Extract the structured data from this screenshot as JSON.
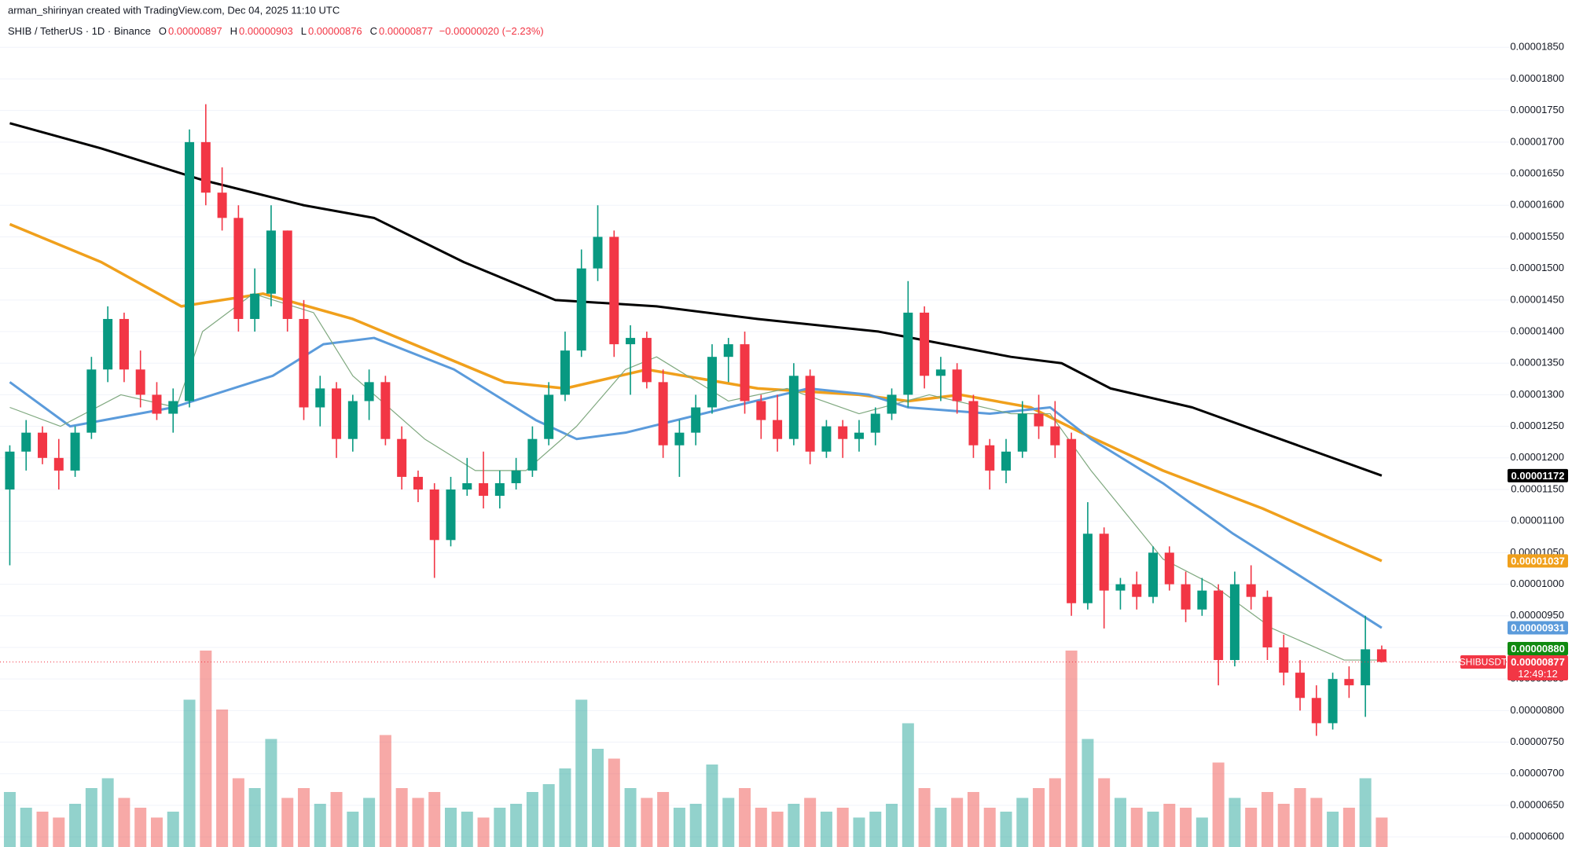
{
  "header": {
    "byline": "arman_shirinyan created with TradingView.com, Dec 04, 2025 11:10 UTC",
    "symbol": "SHIB / TetherUS · 1D · Binance",
    "ohlc": [
      {
        "key": "O",
        "value": "0.00000897"
      },
      {
        "key": "H",
        "value": "0.00000903"
      },
      {
        "key": "L",
        "value": "0.00000876"
      },
      {
        "key": "C",
        "value": "0.00000877"
      }
    ],
    "change": "−0.00000020 (−2.23%)"
  },
  "chart_data": {
    "type": "candlestick",
    "up_color": "#089981",
    "down_color": "#f23645",
    "volume_up_color": "rgba(38,166,154,0.5)",
    "volume_down_color": "rgba(239,83,80,0.5)",
    "xlim": [
      -0.6,
      91.8
    ],
    "ylim": [
      5.84e-06,
      1.925e-05
    ],
    "volume_lim": [
      0,
      100
    ],
    "grid": true,
    "yticks": [
      {
        "value": 6e-06,
        "label": "0.00000600"
      },
      {
        "value": 6.5e-06,
        "label": "0.00000650"
      },
      {
        "value": 7e-06,
        "label": "0.00000700"
      },
      {
        "value": 7.5e-06,
        "label": "0.00000750"
      },
      {
        "value": 8e-06,
        "label": "0.00000800"
      },
      {
        "value": 8.5e-06,
        "label": "0.00000850"
      },
      {
        "value": 9e-06,
        "label": "0.00000900"
      },
      {
        "value": 9.5e-06,
        "label": "0.00000950"
      },
      {
        "value": 1e-05,
        "label": "0.00001000"
      },
      {
        "value": 1.05e-05,
        "label": "0.00001050"
      },
      {
        "value": 1.1e-05,
        "label": "0.00001100"
      },
      {
        "value": 1.15e-05,
        "label": "0.00001150"
      },
      {
        "value": 1.2e-05,
        "label": "0.00001200"
      },
      {
        "value": 1.25e-05,
        "label": "0.00001250"
      },
      {
        "value": 1.3e-05,
        "label": "0.00001300"
      },
      {
        "value": 1.35e-05,
        "label": "0.00001350"
      },
      {
        "value": 1.4e-05,
        "label": "0.00001400"
      },
      {
        "value": 1.45e-05,
        "label": "0.00001450"
      },
      {
        "value": 1.5e-05,
        "label": "0.00001500"
      },
      {
        "value": 1.55e-05,
        "label": "0.00001550"
      },
      {
        "value": 1.6e-05,
        "label": "0.00001600"
      },
      {
        "value": 1.65e-05,
        "label": "0.00001650"
      },
      {
        "value": 1.7e-05,
        "label": "0.00001700"
      },
      {
        "value": 1.75e-05,
        "label": "0.00001750"
      },
      {
        "value": 1.8e-05,
        "label": "0.00001800"
      },
      {
        "value": 1.85e-05,
        "label": "0.00001850"
      }
    ],
    "open": [
      1.15e-05,
      1.21e-05,
      1.24e-05,
      1.2e-05,
      1.18e-05,
      1.24e-05,
      1.34e-05,
      1.42e-05,
      1.34e-05,
      1.3e-05,
      1.27e-05,
      1.29e-05,
      1.7e-05,
      1.62e-05,
      1.58e-05,
      1.42e-05,
      1.46e-05,
      1.56e-05,
      1.42e-05,
      1.28e-05,
      1.31e-05,
      1.23e-05,
      1.29e-05,
      1.32e-05,
      1.23e-05,
      1.17e-05,
      1.15e-05,
      1.07e-05,
      1.15e-05,
      1.16e-05,
      1.14e-05,
      1.16e-05,
      1.18e-05,
      1.23e-05,
      1.3e-05,
      1.37e-05,
      1.5e-05,
      1.55e-05,
      1.38e-05,
      1.39e-05,
      1.32e-05,
      1.22e-05,
      1.24e-05,
      1.28e-05,
      1.36e-05,
      1.38e-05,
      1.29e-05,
      1.26e-05,
      1.23e-05,
      1.33e-05,
      1.21e-05,
      1.25e-05,
      1.23e-05,
      1.24e-05,
      1.27e-05,
      1.3e-05,
      1.43e-05,
      1.33e-05,
      1.34e-05,
      1.29e-05,
      1.22e-05,
      1.18e-05,
      1.21e-05,
      1.27e-05,
      1.25e-05,
      1.23e-05,
      9.7e-06,
      1.08e-05,
      9.9e-06,
      1e-05,
      9.8e-06,
      1.05e-05,
      1e-05,
      9.6e-06,
      9.9e-06,
      8.8e-06,
      1e-05,
      9.8e-06,
      9e-06,
      8.6e-06,
      8.2e-06,
      7.8e-06,
      8.5e-06,
      8.4e-06,
      8.97e-06
    ],
    "high": [
      1.22e-05,
      1.26e-05,
      1.25e-05,
      1.23e-05,
      1.25e-05,
      1.36e-05,
      1.44e-05,
      1.43e-05,
      1.37e-05,
      1.32e-05,
      1.31e-05,
      1.72e-05,
      1.76e-05,
      1.66e-05,
      1.6e-05,
      1.5e-05,
      1.6e-05,
      1.56e-05,
      1.45e-05,
      1.33e-05,
      1.32e-05,
      1.3e-05,
      1.34e-05,
      1.33e-05,
      1.25e-05,
      1.18e-05,
      1.16e-05,
      1.17e-05,
      1.2e-05,
      1.21e-05,
      1.18e-05,
      1.2e-05,
      1.25e-05,
      1.32e-05,
      1.4e-05,
      1.53e-05,
      1.6e-05,
      1.56e-05,
      1.41e-05,
      1.4e-05,
      1.34e-05,
      1.26e-05,
      1.3e-05,
      1.38e-05,
      1.39e-05,
      1.4e-05,
      1.3e-05,
      1.3e-05,
      1.35e-05,
      1.34e-05,
      1.26e-05,
      1.26e-05,
      1.26e-05,
      1.28e-05,
      1.31e-05,
      1.48e-05,
      1.44e-05,
      1.36e-05,
      1.35e-05,
      1.3e-05,
      1.23e-05,
      1.23e-05,
      1.29e-05,
      1.3e-05,
      1.29e-05,
      1.24e-05,
      1.13e-05,
      1.09e-05,
      1.01e-05,
      1.02e-05,
      1.06e-05,
      1.06e-05,
      1.02e-05,
      1.01e-05,
      1e-05,
      1.02e-05,
      1.03e-05,
      9.9e-06,
      9.2e-06,
      8.8e-06,
      8.4e-06,
      8.6e-06,
      8.7e-06,
      9.5e-06,
      9.03e-06
    ],
    "low": [
      1.03e-05,
      1.18e-05,
      1.19e-05,
      1.15e-05,
      1.17e-05,
      1.23e-05,
      1.32e-05,
      1.32e-05,
      1.28e-05,
      1.26e-05,
      1.24e-05,
      1.28e-05,
      1.6e-05,
      1.56e-05,
      1.4e-05,
      1.4e-05,
      1.44e-05,
      1.4e-05,
      1.26e-05,
      1.25e-05,
      1.2e-05,
      1.21e-05,
      1.26e-05,
      1.22e-05,
      1.15e-05,
      1.13e-05,
      1.01e-05,
      1.06e-05,
      1.14e-05,
      1.12e-05,
      1.12e-05,
      1.15e-05,
      1.17e-05,
      1.22e-05,
      1.29e-05,
      1.36e-05,
      1.48e-05,
      1.36e-05,
      1.3e-05,
      1.31e-05,
      1.2e-05,
      1.17e-05,
      1.22e-05,
      1.27e-05,
      1.32e-05,
      1.27e-05,
      1.23e-05,
      1.21e-05,
      1.22e-05,
      1.19e-05,
      1.2e-05,
      1.2e-05,
      1.21e-05,
      1.22e-05,
      1.26e-05,
      1.28e-05,
      1.31e-05,
      1.29e-05,
      1.27e-05,
      1.2e-05,
      1.15e-05,
      1.16e-05,
      1.2e-05,
      1.23e-05,
      1.2e-05,
      9.5e-06,
      9.6e-06,
      9.3e-06,
      9.6e-06,
      9.6e-06,
      9.7e-06,
      9.9e-06,
      9.4e-06,
      9.5e-06,
      8.4e-06,
      8.7e-06,
      9.6e-06,
      8.8e-06,
      8.4e-06,
      8e-06,
      7.6e-06,
      7.7e-06,
      8.2e-06,
      7.9e-06,
      8.76e-06
    ],
    "close": [
      1.21e-05,
      1.24e-05,
      1.2e-05,
      1.18e-05,
      1.24e-05,
      1.34e-05,
      1.42e-05,
      1.34e-05,
      1.3e-05,
      1.27e-05,
      1.29e-05,
      1.7e-05,
      1.62e-05,
      1.58e-05,
      1.42e-05,
      1.46e-05,
      1.56e-05,
      1.42e-05,
      1.28e-05,
      1.31e-05,
      1.23e-05,
      1.29e-05,
      1.32e-05,
      1.23e-05,
      1.17e-05,
      1.15e-05,
      1.07e-05,
      1.15e-05,
      1.16e-05,
      1.14e-05,
      1.16e-05,
      1.18e-05,
      1.23e-05,
      1.3e-05,
      1.37e-05,
      1.5e-05,
      1.55e-05,
      1.38e-05,
      1.39e-05,
      1.32e-05,
      1.22e-05,
      1.24e-05,
      1.28e-05,
      1.36e-05,
      1.38e-05,
      1.29e-05,
      1.26e-05,
      1.23e-05,
      1.33e-05,
      1.21e-05,
      1.25e-05,
      1.23e-05,
      1.24e-05,
      1.27e-05,
      1.3e-05,
      1.43e-05,
      1.33e-05,
      1.34e-05,
      1.29e-05,
      1.22e-05,
      1.18e-05,
      1.21e-05,
      1.27e-05,
      1.25e-05,
      1.22e-05,
      9.7e-06,
      1.08e-05,
      9.9e-06,
      1e-05,
      9.8e-06,
      1.05e-05,
      1e-05,
      9.6e-06,
      9.9e-06,
      8.8e-06,
      1e-05,
      9.8e-06,
      9e-06,
      8.6e-06,
      8.2e-06,
      7.8e-06,
      8.5e-06,
      8.4e-06,
      8.97e-06,
      8.77e-06
    ],
    "volume": [
      28,
      20,
      18,
      15,
      22,
      30,
      35,
      25,
      20,
      15,
      18,
      75,
      100,
      70,
      35,
      30,
      55,
      25,
      30,
      22,
      28,
      18,
      25,
      57,
      30,
      25,
      28,
      20,
      18,
      15,
      20,
      22,
      28,
      32,
      40,
      75,
      50,
      45,
      30,
      25,
      28,
      20,
      22,
      42,
      25,
      30,
      20,
      18,
      22,
      25,
      18,
      20,
      15,
      18,
      22,
      63,
      30,
      20,
      25,
      28,
      20,
      18,
      25,
      30,
      35,
      100,
      55,
      35,
      25,
      20,
      18,
      22,
      20,
      15,
      43,
      25,
      20,
      28,
      22,
      30,
      25,
      18,
      20,
      35,
      15
    ],
    "ma_lines": [
      {
        "color": "#000000",
        "width": 3,
        "x": [
          0,
          5.6,
          11.8,
          18,
          22.3,
          27.8,
          33.4,
          39.6,
          45.8,
          53.2,
          61.3,
          64.4,
          67.4,
          72.4,
          76.7,
          84
        ],
        "values": [
          1.73e-05,
          1.69e-05,
          1.64e-05,
          1.6e-05,
          1.58e-05,
          1.51e-05,
          1.45e-05,
          1.44e-05,
          1.42e-05,
          1.4e-05,
          1.36e-05,
          1.35e-05,
          1.31e-05,
          1.28e-05,
          1.24e-05,
          1.172e-05
        ]
      },
      {
        "color": "#f0a01c",
        "width": 3.5,
        "x": [
          0,
          5.6,
          10.5,
          15.5,
          21,
          30.3,
          34,
          39,
          45.8,
          52,
          55,
          58.2,
          62.5,
          65.6,
          70.6,
          76.7,
          84
        ],
        "values": [
          1.57e-05,
          1.51e-05,
          1.44e-05,
          1.46e-05,
          1.42e-05,
          1.32e-05,
          1.31e-05,
          1.34e-05,
          1.31e-05,
          1.3e-05,
          1.29e-05,
          1.3e-05,
          1.28e-05,
          1.24e-05,
          1.18e-05,
          1.12e-05,
          1.037e-05
        ]
      },
      {
        "color": "#5b9bdb",
        "width": 3,
        "x": [
          0,
          3.7,
          10,
          16.1,
          19.2,
          22.3,
          27.2,
          32.2,
          34.7,
          37.7,
          44,
          48.9,
          52.6,
          55,
          60,
          63.7,
          66.2,
          70.6,
          74.9,
          79.8,
          84
        ],
        "values": [
          1.32e-05,
          1.25e-05,
          1.28e-05,
          1.33e-05,
          1.38e-05,
          1.39e-05,
          1.34e-05,
          1.26e-05,
          1.23e-05,
          1.24e-05,
          1.28e-05,
          1.31e-05,
          1.3e-05,
          1.28e-05,
          1.27e-05,
          1.28e-05,
          1.23e-05,
          1.16e-05,
          1.08e-05,
          1e-05,
          9.31e-06
        ]
      },
      {
        "color": "#7fa87f",
        "width": 1.2,
        "x": [
          0,
          3.1,
          6.8,
          10.2,
          11.8,
          14.9,
          18.6,
          21,
          25.4,
          28.5,
          31.6,
          34.7,
          37.7,
          39.6,
          44,
          47.6,
          52,
          56.3,
          61.3,
          63.7,
          66.2,
          70.6,
          73.6,
          77.3,
          81.7,
          84
        ],
        "values": [
          1.28e-05,
          1.25e-05,
          1.3e-05,
          1.28e-05,
          1.4e-05,
          1.46e-05,
          1.43e-05,
          1.33e-05,
          1.23e-05,
          1.18e-05,
          1.18e-05,
          1.25e-05,
          1.34e-05,
          1.36e-05,
          1.29e-05,
          1.31e-05,
          1.27e-05,
          1.3e-05,
          1.27e-05,
          1.27e-05,
          1.18e-05,
          1.04e-05,
          1e-05,
          9.3e-06,
          8.8e-06,
          8.8e-06
        ]
      }
    ],
    "price_labels": [
      {
        "text": "0.00001172",
        "value": 1.172e-05,
        "color": "#000000"
      },
      {
        "text": "0.00001037",
        "value": 1.037e-05,
        "color": "#f0a01c"
      },
      {
        "text": "0.00000931",
        "value": 9.31e-06,
        "color": "#5b9bdb"
      },
      {
        "text": "0.00000880",
        "value": 8.8e-06,
        "color": "#108a10"
      },
      {
        "text": "0.00000877",
        "value": 8.77e-06,
        "color": "#f23645",
        "tag": "SHIBUSDT",
        "countdown": "12:49:12"
      }
    ]
  }
}
